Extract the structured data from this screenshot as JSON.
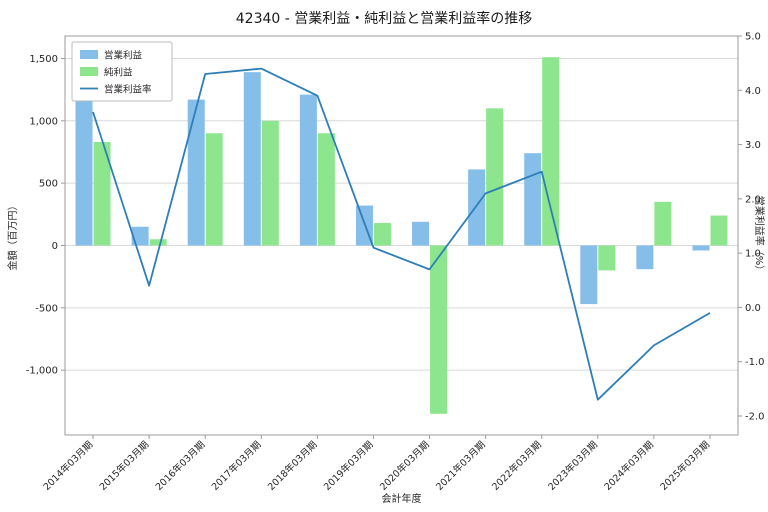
{
  "title": "42340 - 営業利益・純利益と営業利益率の推移",
  "chart_data": {
    "type": "bar+line",
    "title": "42340 - 営業利益・純利益と営業利益率の推移",
    "categories": [
      "2014年03月期",
      "2015年03月期",
      "2016年03月期",
      "2017年03月期",
      "2018年03月期",
      "2019年03月期",
      "2020年03月期",
      "2021年03月期",
      "2022年03月期",
      "2023年03月期",
      "2024年03月期",
      "2025年03月期"
    ],
    "series": [
      {
        "name": "営業利益",
        "type": "bar",
        "axis": "left",
        "color": "#85BEE8",
        "values": [
          1170,
          150,
          1170,
          1390,
          1210,
          320,
          190,
          610,
          740,
          -470,
          -190,
          -40
        ]
      },
      {
        "name": "純利益",
        "type": "bar",
        "axis": "left",
        "color": "#8DE68D",
        "values": [
          830,
          50,
          900,
          1000,
          900,
          180,
          -1350,
          1100,
          1510,
          -200,
          350,
          240
        ]
      },
      {
        "name": "営業利益率",
        "type": "line",
        "axis": "right",
        "color": "#2E7EB8",
        "values": [
          3.6,
          0.4,
          4.3,
          4.4,
          3.9,
          1.1,
          0.7,
          2.1,
          2.5,
          -1.7,
          -0.7,
          -0.1
        ]
      }
    ],
    "xlabel": "会計年度",
    "left_axis": {
      "label": "金額（百万円）",
      "min": -1520,
      "max": 1680,
      "ticks": [
        -1000,
        -500,
        0,
        500,
        1000,
        1500
      ]
    },
    "right_axis": {
      "label": "営業利益率（%）",
      "min": -2.35,
      "max": 5.0,
      "ticks": [
        -2.0,
        -1.0,
        0.0,
        1.0,
        2.0,
        3.0,
        4.0,
        5.0
      ]
    },
    "legend_position": "upper left",
    "grid": true,
    "colors": {
      "grid": "#d9d9d9",
      "spine": "#9b9b9b",
      "tick_text": "#262626"
    }
  }
}
